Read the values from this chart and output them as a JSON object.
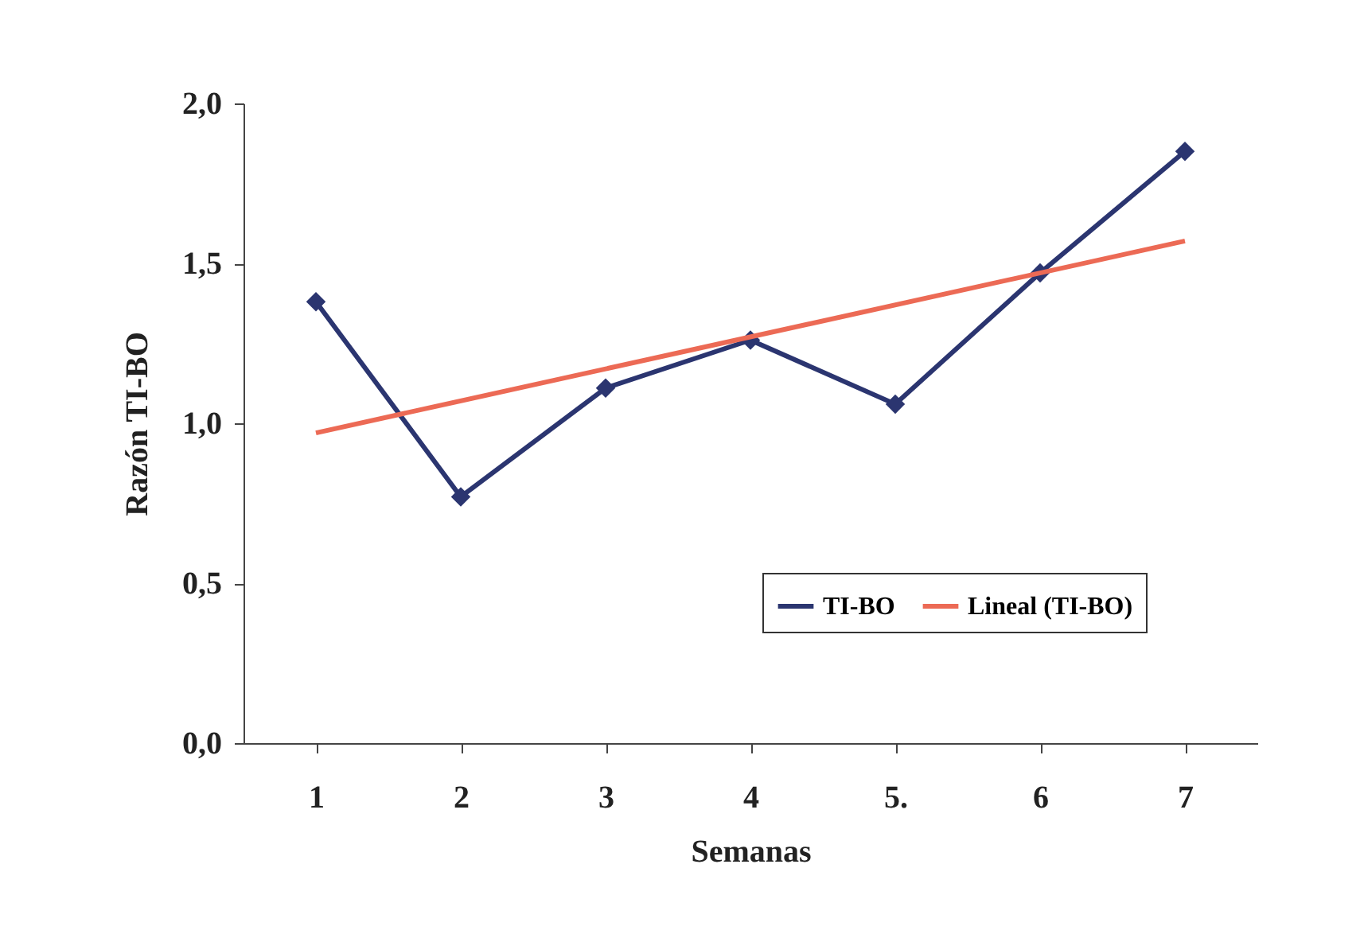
{
  "chart_data": {
    "type": "line",
    "xlabel": "Semanas",
    "ylabel": "Razón TI-BO",
    "categories": [
      "1",
      "2",
      "3",
      "4",
      "5.",
      "6",
      "7"
    ],
    "series": [
      {
        "name": "TI-BO",
        "color": "#2b3570",
        "values": [
          1.38,
          0.77,
          1.11,
          1.26,
          1.06,
          1.47,
          1.85
        ],
        "marker": "diamond"
      },
      {
        "name": "Lineal (TI-BO)",
        "color": "#ec6a55",
        "type": "line",
        "x": [
          "1",
          "7"
        ],
        "values": [
          0.97,
          1.57
        ],
        "marker": "none"
      }
    ],
    "ylim": [
      0,
      2
    ],
    "yticks": [
      {
        "value": 0,
        "label": "0,0"
      },
      {
        "value": 0.5,
        "label": "0,5"
      },
      {
        "value": 1,
        "label": "1,0"
      },
      {
        "value": 1.5,
        "label": "1,5"
      },
      {
        "value": 2,
        "label": "2,0"
      }
    ],
    "grid": false,
    "legend": "bottom right"
  }
}
